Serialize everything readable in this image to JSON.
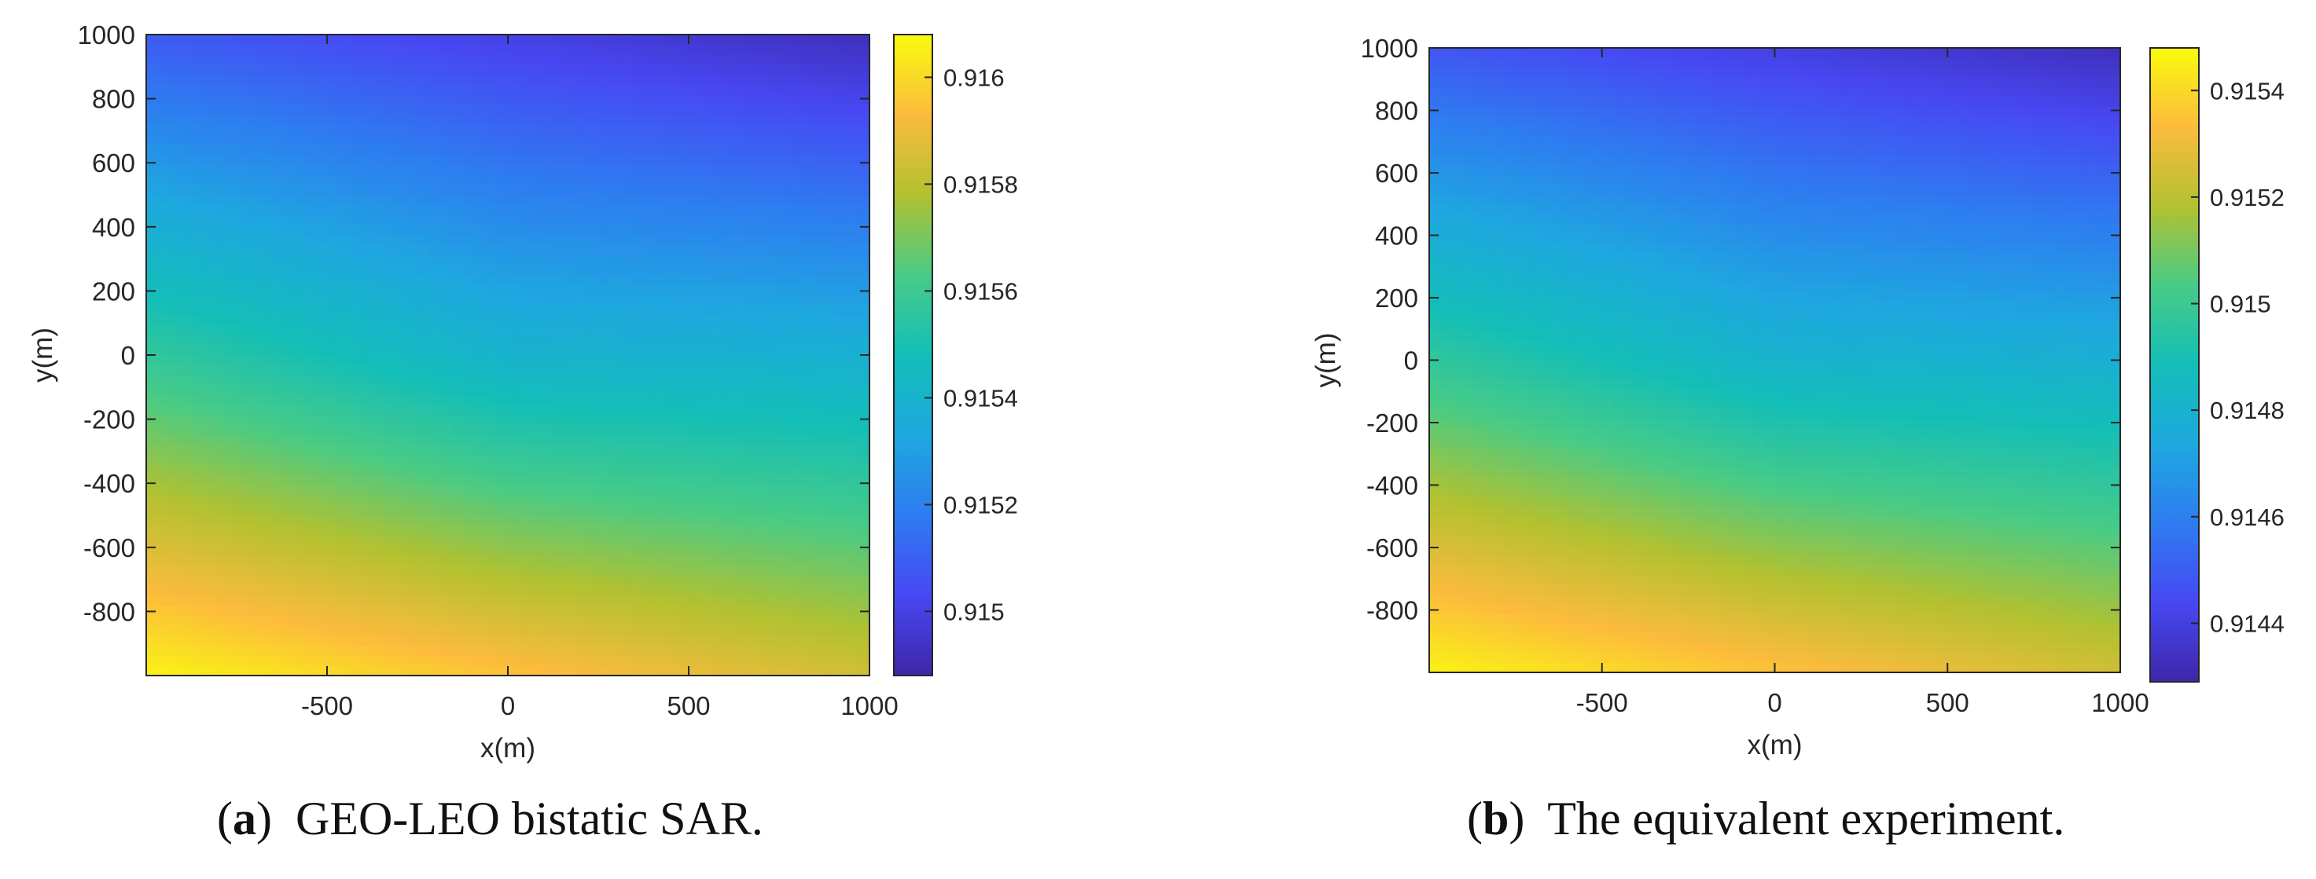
{
  "chart_data": [
    {
      "type": "heatmap",
      "xlabel": "x(m)",
      "ylabel": "y(m)",
      "xlim": [
        -1000,
        1000
      ],
      "ylim": [
        -1000,
        1000
      ],
      "xticks": [
        -500,
        0,
        500,
        1000
      ],
      "xtick_labels": [
        "-500",
        "0",
        "500",
        "1000"
      ],
      "yticks": [
        -800,
        -600,
        -400,
        -200,
        0,
        200,
        400,
        600,
        800,
        1000
      ],
      "ytick_labels": [
        "-800",
        "-600",
        "-400",
        "-200",
        "0",
        "200",
        "400",
        "600",
        "800",
        "1000"
      ],
      "colorbar": {
        "range": [
          0.91488,
          0.91608
        ],
        "ticks": [
          0.915,
          0.9152,
          0.9154,
          0.9156,
          0.9158,
          0.916
        ],
        "tick_labels": [
          "0.915",
          "0.9152",
          "0.9154",
          "0.9156",
          "0.9158",
          "0.916"
        ],
        "colormap": "parula"
      },
      "value_grid": {
        "corners": {
          "x_min_y_max": 0.91508,
          "x_max_y_max": 0.91492,
          "x_min_y_min": 0.91606,
          "x_max_y_min": 0.91584
        },
        "at_origin": 0.9154
      },
      "grid": false
    },
    {
      "type": "heatmap",
      "xlabel": "x(m)",
      "ylabel": "y(m)",
      "xlim": [
        -1000,
        1000
      ],
      "ylim": [
        -1000,
        1000
      ],
      "xticks": [
        -500,
        0,
        500,
        1000
      ],
      "xtick_labels": [
        "-500",
        "0",
        "500",
        "1000"
      ],
      "yticks": [
        -800,
        -600,
        -400,
        -200,
        0,
        200,
        400,
        600,
        800,
        1000
      ],
      "ytick_labels": [
        "-800",
        "-600",
        "-400",
        "-200",
        "0",
        "200",
        "400",
        "600",
        "800",
        "1000"
      ],
      "colorbar": {
        "range": [
          0.91429,
          0.91548
        ],
        "ticks": [
          0.9144,
          0.9146,
          0.9148,
          0.915,
          0.9152,
          0.9154
        ],
        "tick_labels": [
          "0.9144",
          "0.9146",
          "0.9148",
          "0.915",
          "0.9152",
          "0.9154"
        ],
        "colormap": "parula"
      },
      "value_grid": {
        "corners": {
          "x_min_y_max": 0.91448,
          "x_max_y_max": 0.91433,
          "x_min_y_min": 0.91546,
          "x_max_y_min": 0.91524
        },
        "at_origin": 0.91481
      },
      "grid": false
    }
  ],
  "captions": [
    {
      "letter": "a",
      "open": "(",
      "close": ")",
      "text": "GEO-LEO bistatic SAR."
    },
    {
      "letter": "b",
      "open": "(",
      "close": ")",
      "text": "The equivalent experiment."
    }
  ]
}
